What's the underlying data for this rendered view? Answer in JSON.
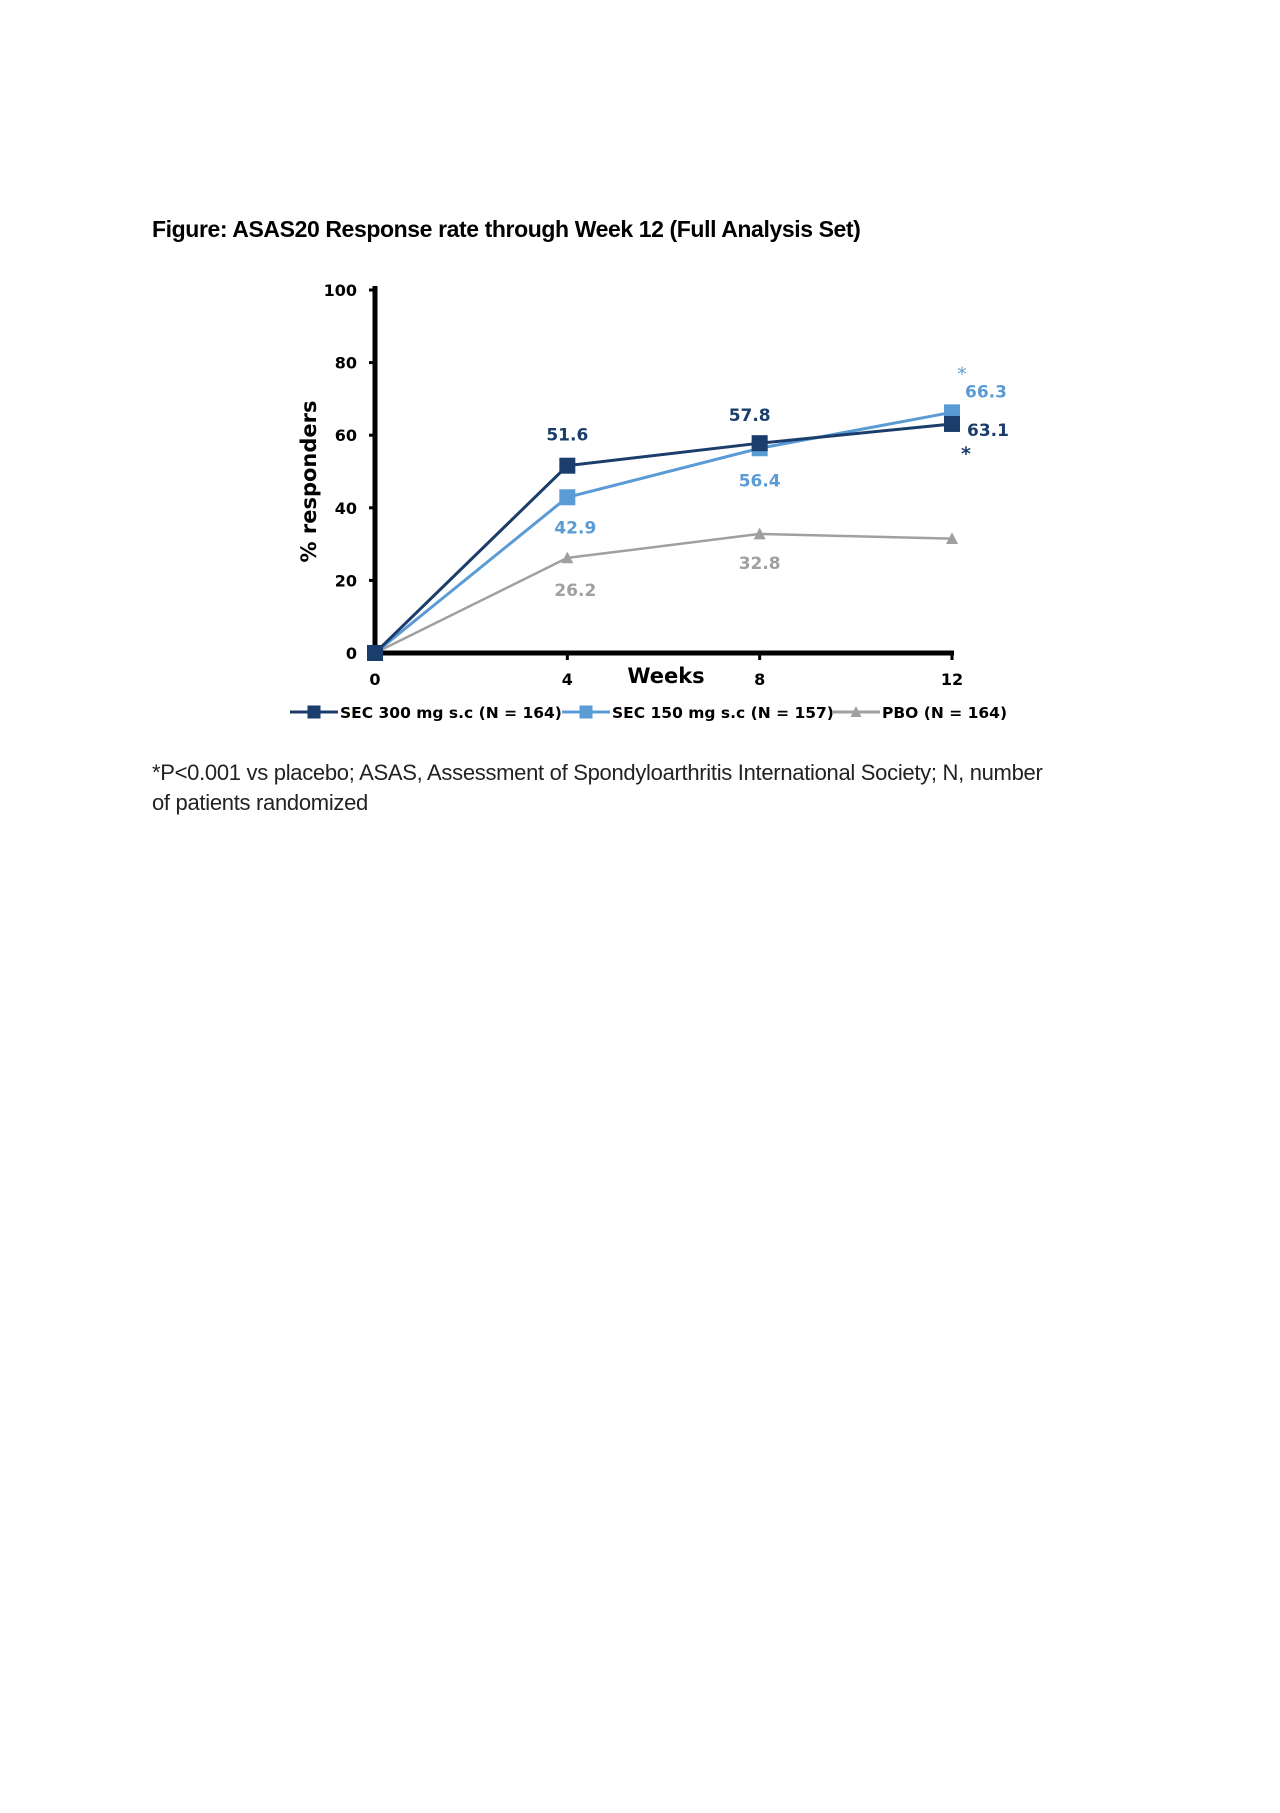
{
  "title": "Figure: ASAS20 Response rate through Week 12 (Full Analysis Set)",
  "footnote": {
    "line1": "*P<0.001 vs placebo; ASAS, Assessment of Spondyloarthritis International Society; N, number",
    "line2": "of patients randomized"
  },
  "colors": {
    "sec300": "#1a3d6b",
    "sec150": "#5b9bd5",
    "pbo": "#a0a0a0",
    "axis": "#000000"
  },
  "chart_data": {
    "type": "line",
    "xlabel": "Weeks",
    "ylabel": "% responders",
    "x": [
      0,
      4,
      8,
      12
    ],
    "x_ticks": [
      "0",
      "4",
      "8",
      "12"
    ],
    "y_ticks": [
      "0",
      "20",
      "40",
      "60",
      "80",
      "100"
    ],
    "ylim": [
      0,
      100
    ],
    "xlim": [
      0,
      12
    ],
    "grid": false,
    "legend_position": "bottom",
    "series": [
      {
        "key": "sec300",
        "name": "SEC 300 mg s.c (N = 164)",
        "marker": "square",
        "values": [
          0,
          51.6,
          57.8,
          63.1
        ],
        "labels": [
          "",
          "51.6",
          "57.8",
          "63.1"
        ],
        "significance": [
          "",
          "",
          "",
          "*"
        ]
      },
      {
        "key": "sec150",
        "name": "SEC 150 mg s.c (N = 157)",
        "marker": "square",
        "values": [
          0,
          42.9,
          56.4,
          66.3
        ],
        "labels": [
          "",
          "42.9",
          "56.4",
          "66.3"
        ],
        "significance": [
          "",
          "",
          "",
          "*"
        ]
      },
      {
        "key": "pbo",
        "name": "PBO (N = 164)",
        "marker": "triangle",
        "values": [
          0,
          26.2,
          32.8,
          31.5
        ],
        "labels": [
          "",
          "26.2",
          "32.8",
          ""
        ],
        "significance": [
          "",
          "",
          "",
          ""
        ]
      }
    ]
  }
}
